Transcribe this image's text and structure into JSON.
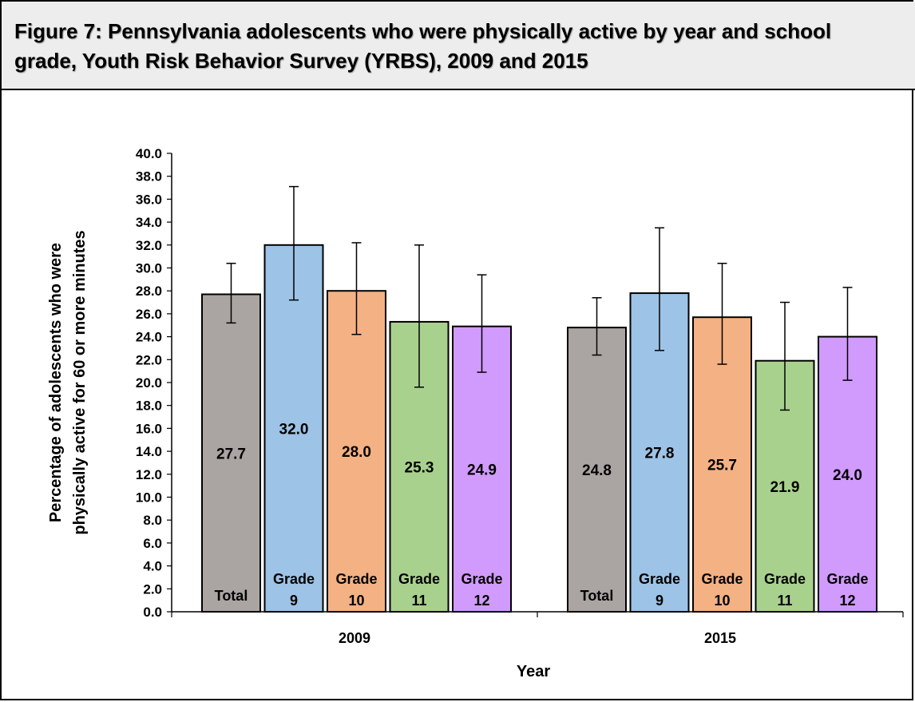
{
  "title": "Figure 7: Pennsylvania adolescents who were physically active by year and school grade, Youth Risk Behavior Survey (YRBS), 2009 and 2015",
  "chart_data": {
    "type": "bar",
    "title": "Figure 7: Pennsylvania adolescents who were physically active by year and school grade, Youth Risk Behavior Survey (YRBS), 2009 and 2015",
    "xlabel": "Year",
    "ylabel": [
      "Percentage of adolescents who were",
      "physically active for 60 or more minutes"
    ],
    "ylim": [
      0,
      40
    ],
    "ytick_step": 2,
    "ytick_labels": [
      "0.0",
      "2.0",
      "4.0",
      "6.0",
      "8.0",
      "10.0",
      "12.0",
      "14.0",
      "16.0",
      "18.0",
      "20.0",
      "22.0",
      "24.0",
      "26.0",
      "28.0",
      "30.0",
      "32.0",
      "34.0",
      "36.0",
      "38.0",
      "40.0"
    ],
    "grid": false,
    "legend": "none",
    "categories": [
      "2009",
      "2015"
    ],
    "series": [
      {
        "label_lines": [
          "Total"
        ],
        "color": "#aaa5a2",
        "values": [
          27.7,
          24.8
        ],
        "error_low": [
          25.2,
          22.4
        ],
        "error_high": [
          30.4,
          27.4
        ]
      },
      {
        "label_lines": [
          "Grade",
          "9"
        ],
        "color": "#9dc3e6",
        "values": [
          32.0,
          27.8
        ],
        "error_low": [
          27.2,
          22.8
        ],
        "error_high": [
          37.1,
          33.5
        ]
      },
      {
        "label_lines": [
          "Grade",
          "10"
        ],
        "color": "#f4b183",
        "values": [
          28.0,
          25.7
        ],
        "error_low": [
          24.2,
          21.6
        ],
        "error_high": [
          32.2,
          30.4
        ]
      },
      {
        "label_lines": [
          "Grade",
          "11"
        ],
        "color": "#a9d18e",
        "values": [
          25.3,
          21.9
        ],
        "error_low": [
          19.6,
          17.6
        ],
        "error_high": [
          32.0,
          27.0
        ]
      },
      {
        "label_lines": [
          "Grade",
          "12"
        ],
        "color": "#d19afd",
        "values": [
          24.9,
          24.0
        ],
        "error_low": [
          20.9,
          20.2
        ],
        "error_high": [
          29.4,
          28.3
        ]
      }
    ],
    "value_labels": [
      [
        "27.7",
        "32.0",
        "28.0",
        "25.3",
        "24.9"
      ],
      [
        "24.8",
        "27.8",
        "25.7",
        "21.9",
        "24.0"
      ]
    ]
  }
}
